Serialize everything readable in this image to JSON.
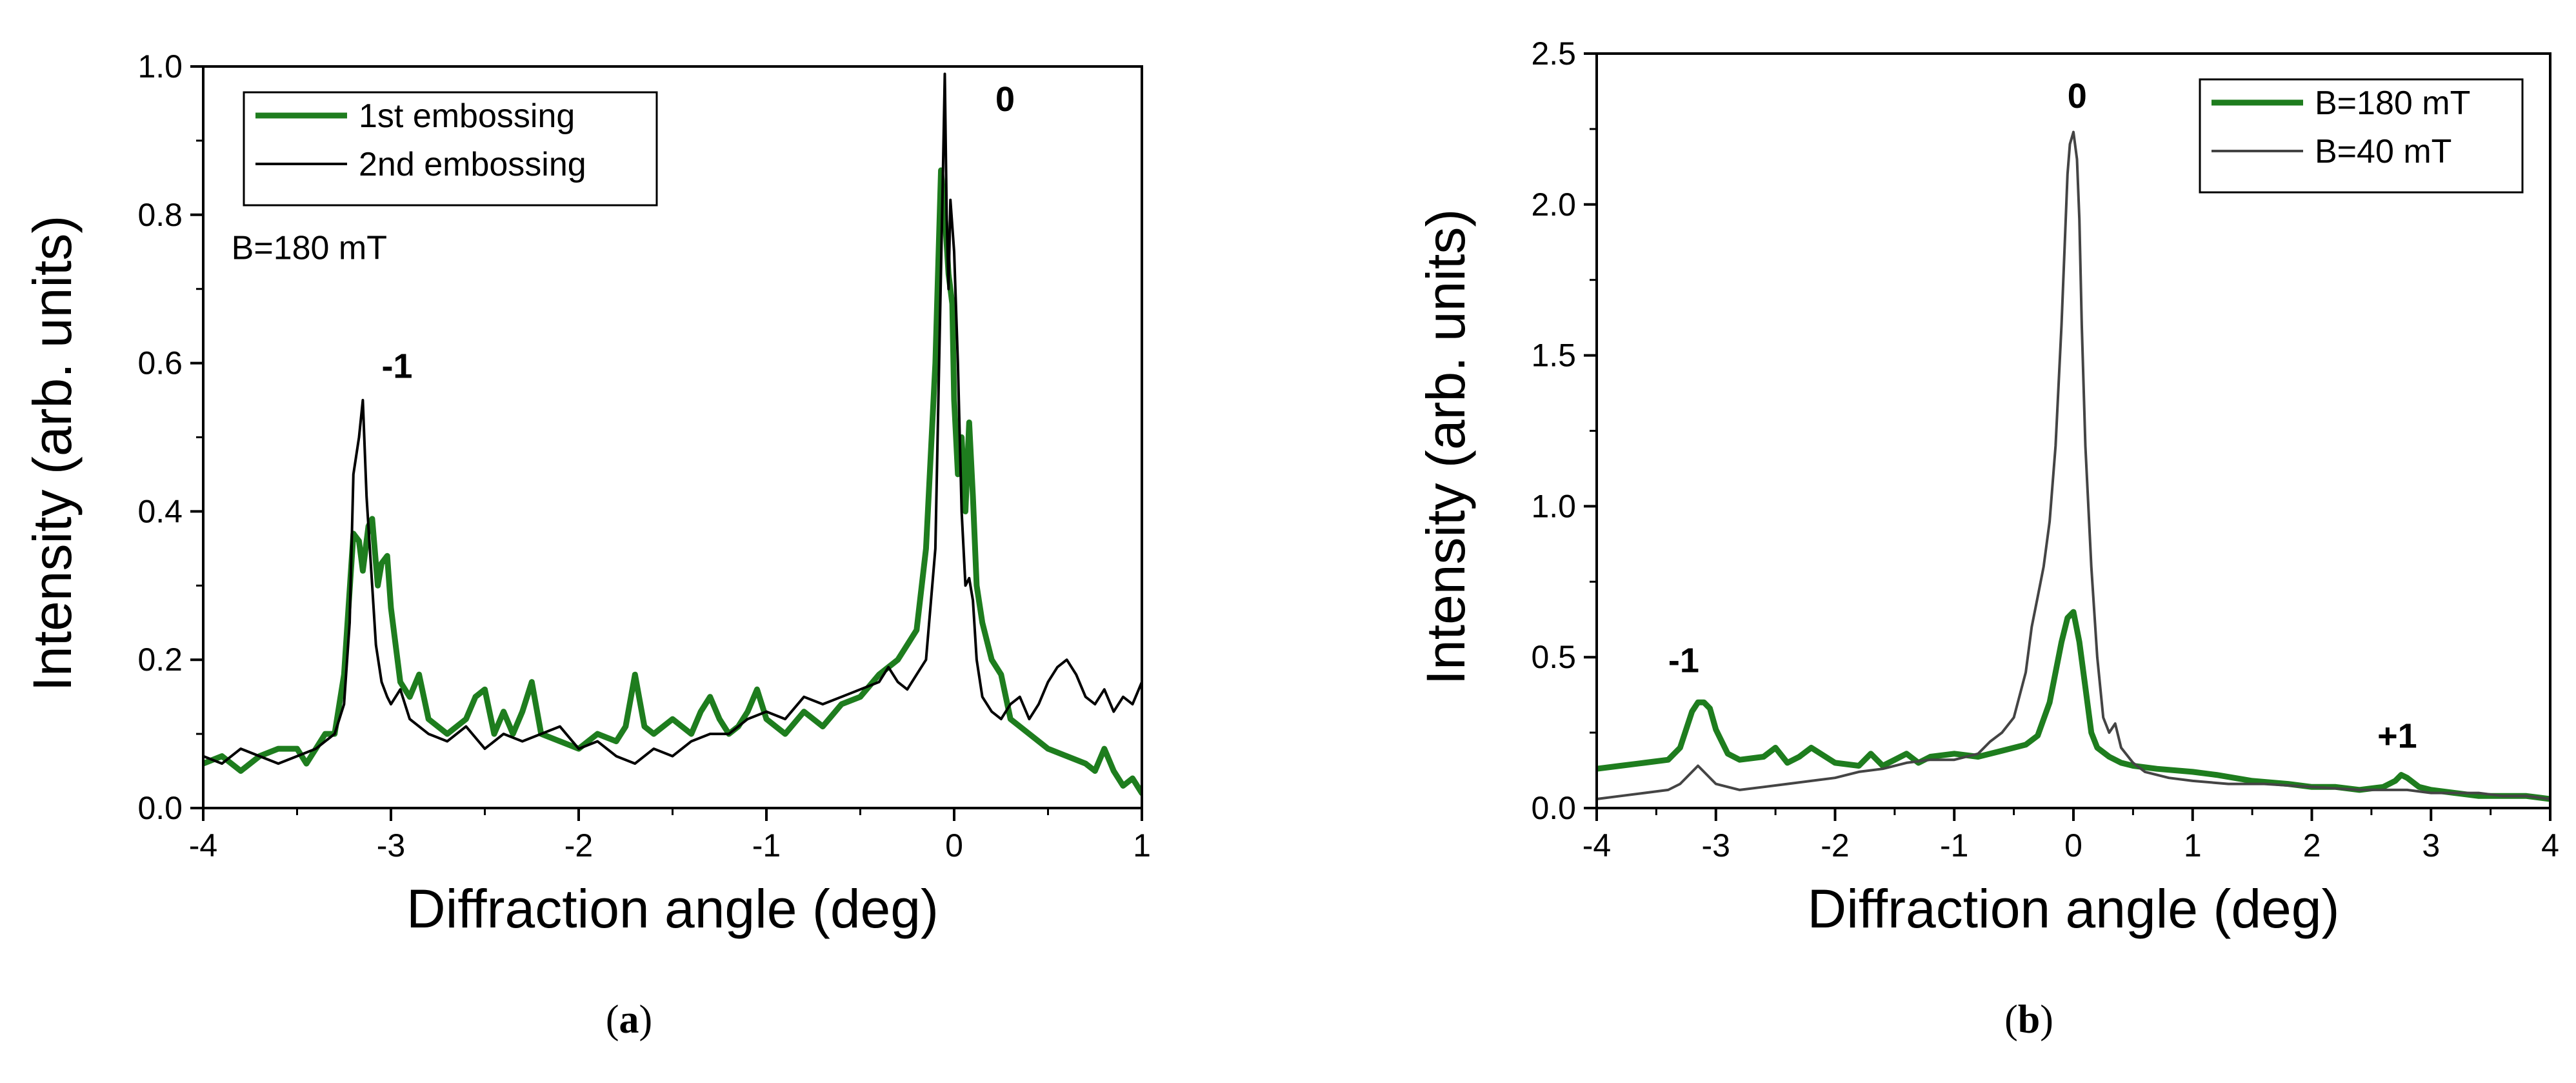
{
  "chart_data": [
    {
      "type": "line",
      "panel_label": "a",
      "xlabel": "Diffraction angle (deg)",
      "ylabel": "Intensity (arb. units)",
      "xlim": [
        -4,
        1
      ],
      "ylim": [
        0,
        1.0
      ],
      "xticks": [
        -4,
        -3,
        -2,
        -1,
        0,
        1
      ],
      "xtick_labels": [
        "-4",
        "-3",
        "-2",
        "-1",
        "0",
        "1"
      ],
      "yticks": [
        0.0,
        0.2,
        0.4,
        0.6,
        0.8,
        1.0
      ],
      "ytick_labels": [
        "0.0",
        "0.2",
        "0.4",
        "0.6",
        "0.8",
        "1.0"
      ],
      "legend_position": "top-left",
      "annotations": [
        {
          "text": "B=180 mT",
          "x": -3.85,
          "y": 0.74
        },
        {
          "text": "-1",
          "x": -3.05,
          "y": 0.58,
          "bold": true
        },
        {
          "text": "0",
          "x": 0.22,
          "y": 0.94,
          "bold": true
        }
      ],
      "series": [
        {
          "name": "1st embossing",
          "color": "#1e7d1e",
          "style": "thick",
          "x": [
            -4.0,
            -3.9,
            -3.8,
            -3.7,
            -3.6,
            -3.5,
            -3.45,
            -3.4,
            -3.35,
            -3.3,
            -3.25,
            -3.2,
            -3.17,
            -3.15,
            -3.12,
            -3.1,
            -3.07,
            -3.05,
            -3.02,
            -3.0,
            -2.95,
            -2.9,
            -2.85,
            -2.8,
            -2.7,
            -2.6,
            -2.55,
            -2.5,
            -2.45,
            -2.4,
            -2.35,
            -2.3,
            -2.25,
            -2.2,
            -2.1,
            -2.0,
            -1.9,
            -1.8,
            -1.75,
            -1.7,
            -1.65,
            -1.6,
            -1.5,
            -1.4,
            -1.35,
            -1.3,
            -1.25,
            -1.2,
            -1.15,
            -1.1,
            -1.05,
            -1.0,
            -0.9,
            -0.8,
            -0.7,
            -0.6,
            -0.5,
            -0.4,
            -0.3,
            -0.25,
            -0.2,
            -0.15,
            -0.1,
            -0.07,
            -0.05,
            -0.03,
            -0.01,
            0.0,
            0.02,
            0.04,
            0.06,
            0.08,
            0.1,
            0.12,
            0.15,
            0.2,
            0.25,
            0.3,
            0.4,
            0.5,
            0.6,
            0.7,
            0.75,
            0.8,
            0.85,
            0.9,
            0.95,
            1.0
          ],
          "y": [
            0.06,
            0.07,
            0.05,
            0.07,
            0.08,
            0.08,
            0.06,
            0.08,
            0.1,
            0.1,
            0.18,
            0.37,
            0.36,
            0.32,
            0.38,
            0.39,
            0.3,
            0.33,
            0.34,
            0.27,
            0.17,
            0.15,
            0.18,
            0.12,
            0.1,
            0.12,
            0.15,
            0.16,
            0.1,
            0.13,
            0.1,
            0.13,
            0.17,
            0.1,
            0.09,
            0.08,
            0.1,
            0.09,
            0.11,
            0.18,
            0.11,
            0.1,
            0.12,
            0.1,
            0.13,
            0.15,
            0.12,
            0.1,
            0.11,
            0.13,
            0.16,
            0.12,
            0.1,
            0.13,
            0.11,
            0.14,
            0.15,
            0.18,
            0.2,
            0.22,
            0.24,
            0.35,
            0.6,
            0.86,
            0.8,
            0.72,
            0.68,
            0.55,
            0.45,
            0.5,
            0.4,
            0.52,
            0.42,
            0.3,
            0.25,
            0.2,
            0.18,
            0.12,
            0.1,
            0.08,
            0.07,
            0.06,
            0.05,
            0.08,
            0.05,
            0.03,
            0.04,
            0.02
          ]
        },
        {
          "name": "2nd embossing",
          "color": "#000000",
          "style": "thin",
          "x": [
            -4.0,
            -3.9,
            -3.8,
            -3.7,
            -3.6,
            -3.5,
            -3.4,
            -3.35,
            -3.3,
            -3.25,
            -3.22,
            -3.2,
            -3.17,
            -3.15,
            -3.13,
            -3.1,
            -3.08,
            -3.05,
            -3.02,
            -3.0,
            -2.95,
            -2.9,
            -2.8,
            -2.7,
            -2.6,
            -2.5,
            -2.4,
            -2.3,
            -2.2,
            -2.1,
            -2.0,
            -1.9,
            -1.8,
            -1.7,
            -1.6,
            -1.5,
            -1.4,
            -1.3,
            -1.2,
            -1.1,
            -1.0,
            -0.9,
            -0.8,
            -0.7,
            -0.6,
            -0.5,
            -0.4,
            -0.35,
            -0.3,
            -0.25,
            -0.2,
            -0.15,
            -0.1,
            -0.08,
            -0.06,
            -0.05,
            -0.04,
            -0.03,
            -0.02,
            0.0,
            0.02,
            0.04,
            0.06,
            0.08,
            0.1,
            0.12,
            0.15,
            0.2,
            0.25,
            0.3,
            0.35,
            0.4,
            0.45,
            0.5,
            0.55,
            0.6,
            0.65,
            0.7,
            0.75,
            0.8,
            0.85,
            0.9,
            0.95,
            1.0
          ],
          "y": [
            0.07,
            0.06,
            0.08,
            0.07,
            0.06,
            0.07,
            0.08,
            0.09,
            0.1,
            0.14,
            0.25,
            0.45,
            0.5,
            0.55,
            0.42,
            0.3,
            0.22,
            0.17,
            0.15,
            0.14,
            0.16,
            0.12,
            0.1,
            0.09,
            0.11,
            0.08,
            0.1,
            0.09,
            0.1,
            0.11,
            0.08,
            0.09,
            0.07,
            0.06,
            0.08,
            0.07,
            0.09,
            0.1,
            0.1,
            0.12,
            0.13,
            0.12,
            0.15,
            0.14,
            0.15,
            0.16,
            0.17,
            0.19,
            0.17,
            0.16,
            0.18,
            0.2,
            0.35,
            0.6,
            0.85,
            0.99,
            0.8,
            0.7,
            0.82,
            0.75,
            0.6,
            0.4,
            0.3,
            0.31,
            0.28,
            0.2,
            0.15,
            0.13,
            0.12,
            0.14,
            0.15,
            0.12,
            0.14,
            0.17,
            0.19,
            0.2,
            0.18,
            0.15,
            0.14,
            0.16,
            0.13,
            0.15,
            0.14,
            0.17
          ]
        }
      ]
    },
    {
      "type": "line",
      "panel_label": "b",
      "xlabel": "Diffraction angle (deg)",
      "ylabel": "Intensity (arb. units)",
      "xlim": [
        -4,
        4
      ],
      "ylim": [
        0,
        2.5
      ],
      "xticks": [
        -4,
        -3,
        -2,
        -1,
        0,
        1,
        2,
        3,
        4
      ],
      "xtick_labels": [
        "-4",
        "-3",
        "-2",
        "-1",
        "0",
        "1",
        "2",
        "3",
        "4"
      ],
      "yticks": [
        0.0,
        0.5,
        1.0,
        1.5,
        2.0,
        2.5
      ],
      "ytick_labels": [
        "0.0",
        "0.5",
        "1.0",
        "1.5",
        "2.0",
        "2.5"
      ],
      "legend_position": "top-right",
      "annotations": [
        {
          "text": "-1",
          "x": -3.4,
          "y": 0.45,
          "bold": true
        },
        {
          "text": "0",
          "x": -0.05,
          "y": 2.32,
          "bold": true
        },
        {
          "text": "+1",
          "x": 2.55,
          "y": 0.2,
          "bold": true
        }
      ],
      "series": [
        {
          "name": "B=180 mT",
          "color": "#1e7d1e",
          "style": "thick",
          "x": [
            -4.0,
            -3.8,
            -3.6,
            -3.4,
            -3.3,
            -3.2,
            -3.15,
            -3.1,
            -3.05,
            -3.0,
            -2.9,
            -2.8,
            -2.6,
            -2.5,
            -2.4,
            -2.3,
            -2.2,
            -2.0,
            -1.8,
            -1.7,
            -1.6,
            -1.5,
            -1.4,
            -1.3,
            -1.2,
            -1.0,
            -0.8,
            -0.6,
            -0.4,
            -0.3,
            -0.2,
            -0.1,
            -0.05,
            0.0,
            0.05,
            0.1,
            0.15,
            0.2,
            0.3,
            0.4,
            0.5,
            0.7,
            1.0,
            1.2,
            1.5,
            1.8,
            2.0,
            2.2,
            2.4,
            2.6,
            2.7,
            2.75,
            2.8,
            2.9,
            3.0,
            3.2,
            3.4,
            3.6,
            3.8,
            4.0
          ],
          "y": [
            0.13,
            0.14,
            0.15,
            0.16,
            0.2,
            0.32,
            0.35,
            0.35,
            0.33,
            0.26,
            0.18,
            0.16,
            0.17,
            0.2,
            0.15,
            0.17,
            0.2,
            0.15,
            0.14,
            0.18,
            0.14,
            0.16,
            0.18,
            0.15,
            0.17,
            0.18,
            0.17,
            0.19,
            0.21,
            0.24,
            0.35,
            0.55,
            0.63,
            0.65,
            0.55,
            0.4,
            0.25,
            0.2,
            0.17,
            0.15,
            0.14,
            0.13,
            0.12,
            0.11,
            0.09,
            0.08,
            0.07,
            0.07,
            0.06,
            0.07,
            0.09,
            0.11,
            0.1,
            0.07,
            0.06,
            0.05,
            0.04,
            0.04,
            0.04,
            0.03
          ]
        },
        {
          "name": "B=40 mT",
          "color": "#444444",
          "style": "thin",
          "x": [
            -4.0,
            -3.8,
            -3.6,
            -3.4,
            -3.3,
            -3.2,
            -3.15,
            -3.1,
            -3.0,
            -2.8,
            -2.6,
            -2.4,
            -2.2,
            -2.0,
            -1.8,
            -1.6,
            -1.4,
            -1.2,
            -1.0,
            -0.8,
            -0.7,
            -0.6,
            -0.5,
            -0.4,
            -0.35,
            -0.3,
            -0.25,
            -0.2,
            -0.15,
            -0.1,
            -0.07,
            -0.05,
            -0.03,
            0.0,
            0.03,
            0.05,
            0.07,
            0.1,
            0.15,
            0.2,
            0.25,
            0.3,
            0.35,
            0.4,
            0.5,
            0.6,
            0.8,
            1.0,
            1.3,
            1.6,
            2.0,
            2.4,
            2.8,
            3.0,
            3.2,
            3.4,
            3.6,
            3.8,
            4.0
          ],
          "y": [
            0.03,
            0.04,
            0.05,
            0.06,
            0.08,
            0.12,
            0.14,
            0.12,
            0.08,
            0.06,
            0.07,
            0.08,
            0.09,
            0.1,
            0.12,
            0.13,
            0.15,
            0.16,
            0.16,
            0.18,
            0.22,
            0.25,
            0.3,
            0.45,
            0.6,
            0.7,
            0.8,
            0.95,
            1.2,
            1.6,
            1.9,
            2.1,
            2.2,
            2.24,
            2.15,
            1.95,
            1.6,
            1.2,
            0.8,
            0.5,
            0.3,
            0.25,
            0.28,
            0.2,
            0.15,
            0.12,
            0.1,
            0.09,
            0.08,
            0.08,
            0.07,
            0.06,
            0.06,
            0.05,
            0.05,
            0.05,
            0.04,
            0.04,
            0.03
          ]
        }
      ]
    }
  ],
  "panel_b_zero_label": "0",
  "panel_b_plus_label": "+1"
}
